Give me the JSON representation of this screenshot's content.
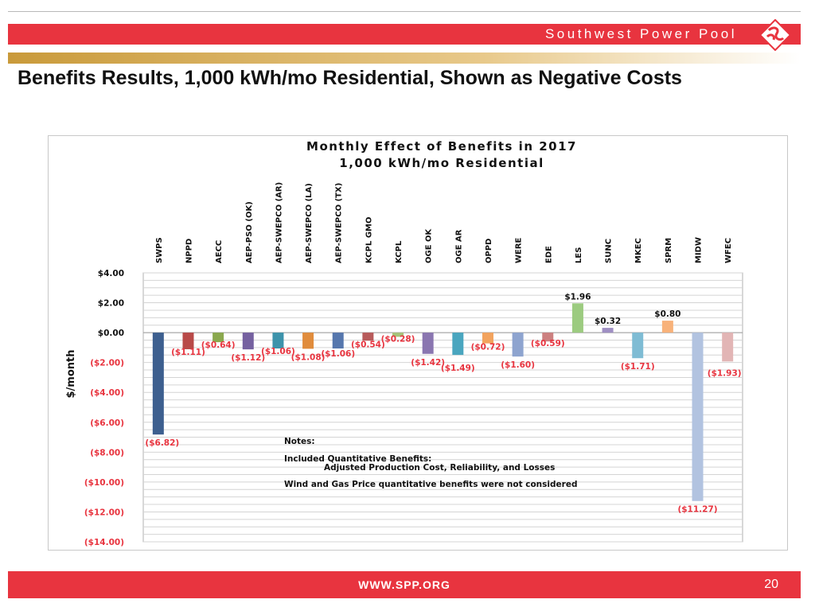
{
  "header": {
    "brand": "Southwest Power Pool"
  },
  "slide": {
    "title": "Benefits Results, 1,000 kWh/mo Residential, Shown as Negative Costs"
  },
  "footer": {
    "url": "WWW.SPP.ORG",
    "page": "20"
  },
  "chart_data": {
    "type": "bar",
    "title": "Monthly Effect of Benefits in 2017",
    "subtitle": "1,000 kWh/mo Residential",
    "ylabel": "$/month",
    "xlabel": "",
    "ylim": [
      -14,
      4
    ],
    "yticks": [
      4,
      2,
      0,
      -2,
      -4,
      -6,
      -8,
      -10,
      -12,
      -14
    ],
    "ytick_labels": [
      "$4.00",
      "$2.00",
      "$0.00",
      "($2.00)",
      "($4.00)",
      "($6.00)",
      "($8.00)",
      "($10.00)",
      "($12.00)",
      "($14.00)"
    ],
    "grid": true,
    "categories": [
      "SWPS",
      "NPPD",
      "AECC",
      "AEP-PSO (OK)",
      "AEP-SWEPCO (AR)",
      "AEP-SWEPCO (LA)",
      "AEP-SWEPCO (TX)",
      "KCPL GMO",
      "KCPL",
      "OGE OK",
      "OGE AR",
      "OPPD",
      "WERE",
      "EDE",
      "LES",
      "SUNC",
      "MKEC",
      "SPRM",
      "MIDW",
      "WFEC"
    ],
    "values": [
      -6.82,
      -1.11,
      -0.64,
      -1.12,
      -1.06,
      -1.08,
      -1.06,
      -0.54,
      -0.28,
      -1.42,
      -1.49,
      -0.72,
      -1.6,
      -0.59,
      1.96,
      0.32,
      -1.71,
      0.8,
      -11.27,
      -1.93
    ],
    "value_labels": [
      "($6.82)",
      "($1.11)",
      "($0.64)",
      "($1.12)",
      "($1.06)",
      "($1.08)",
      "($1.06)",
      "($0.54)",
      "($0.28)",
      "($1.42)",
      "($1.49)",
      "($0.72)",
      "($1.60)",
      "($0.59)",
      "$1.96",
      "$0.32",
      "($1.71)",
      "$0.80",
      "($11.27)",
      "($1.93)"
    ],
    "colors": [
      "#3d5f8f",
      "#b84a48",
      "#8aa84e",
      "#7561a0",
      "#3d93ab",
      "#e08c3c",
      "#5677ad",
      "#b75b5b",
      "#a7c37a",
      "#8a76b0",
      "#4aa6bf",
      "#f2a35e",
      "#8ea4cf",
      "#cc8080",
      "#9ccb80",
      "#9f8fc3",
      "#7fbcd4",
      "#f8b27a",
      "#b2c3e0",
      "#e2b5b5"
    ],
    "notes": {
      "heading": "Notes:",
      "line1": "Included Quantitative Benefits:",
      "line2": "Adjusted Production Cost, Reliability, and Losses",
      "line3": "Wind and Gas Price quantitative benefits were not considered"
    }
  }
}
